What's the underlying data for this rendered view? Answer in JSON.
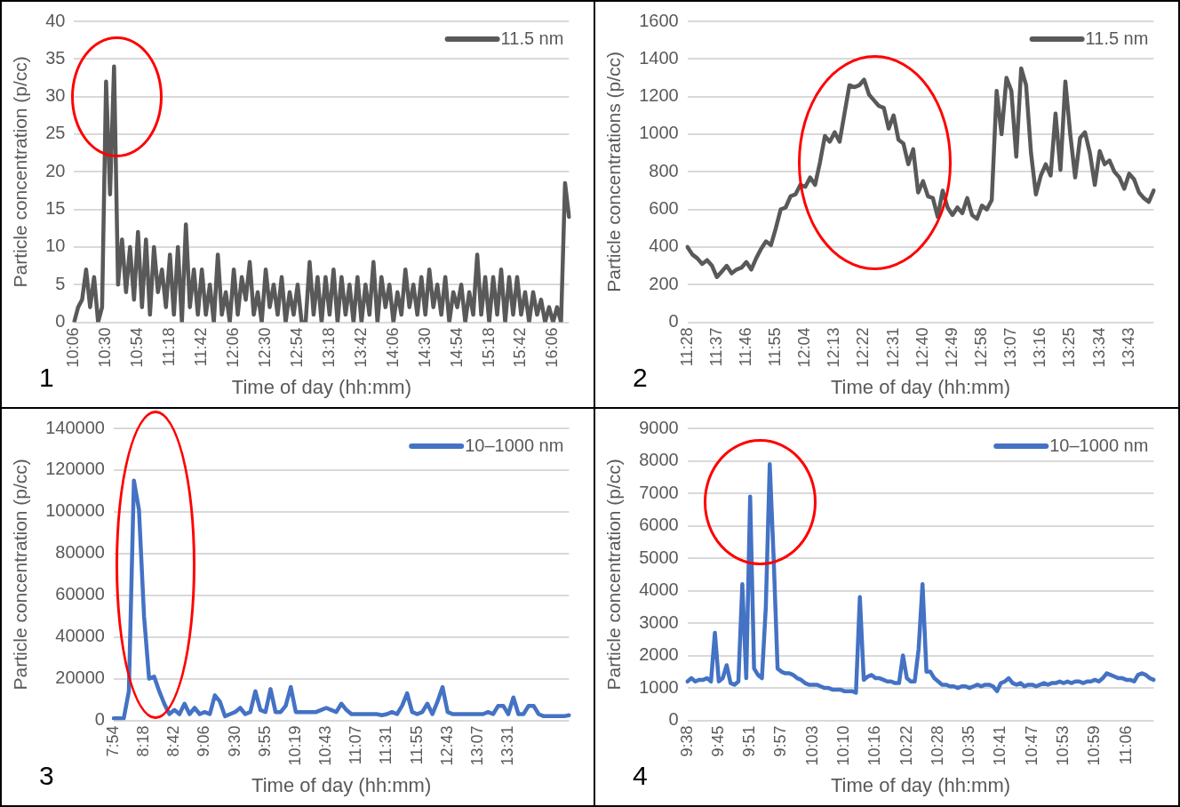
{
  "chart_data": [
    {
      "type": "line",
      "xlabel": "Time of day (hh:mm)",
      "ylabel": "Particle concentration (p/cc)",
      "ylim": [
        0,
        40
      ],
      "yticks": [
        0,
        5,
        10,
        15,
        20,
        25,
        30,
        35,
        40
      ],
      "grid": "y",
      "legend": "top right",
      "annotations": [
        "1"
      ],
      "categories": [
        "10:06",
        null,
        null,
        null,
        null,
        null,
        null,
        null,
        "10:30",
        null,
        null,
        null,
        null,
        null,
        null,
        null,
        "10:54",
        null,
        null,
        null,
        null,
        null,
        null,
        null,
        "11:18",
        null,
        null,
        null,
        null,
        null,
        null,
        null,
        "11:42",
        null,
        null,
        null,
        null,
        null,
        null,
        null,
        "12:06",
        null,
        null,
        null,
        null,
        null,
        null,
        null,
        "12:30",
        null,
        null,
        null,
        null,
        null,
        null,
        null,
        "12:54",
        null,
        null,
        null,
        null,
        null,
        null,
        null,
        "13:18",
        null,
        null,
        null,
        null,
        null,
        null,
        null,
        "13:42",
        null,
        null,
        null,
        null,
        null,
        null,
        null,
        "14:06",
        null,
        null,
        null,
        null,
        null,
        null,
        null,
        "14:30",
        null,
        null,
        null,
        null,
        null,
        null,
        null,
        "14:54",
        null,
        null,
        null,
        null,
        null,
        null,
        null,
        "15:18",
        null,
        null,
        null,
        null,
        null,
        null,
        null,
        "15:42",
        null,
        null,
        null,
        null,
        null,
        null,
        null,
        "16:06",
        null,
        null,
        null,
        null
      ],
      "series": [
        {
          "name": "11.5 nm",
          "color": "#595959",
          "values": [
            0,
            2,
            3,
            7,
            2,
            6,
            0,
            2,
            32,
            17,
            34,
            5,
            11,
            4,
            10,
            3,
            12,
            2,
            11,
            1,
            10,
            4,
            7,
            2,
            9,
            1,
            10,
            0,
            13,
            2,
            7,
            1,
            7,
            1,
            5,
            0,
            9,
            1,
            4,
            0,
            7,
            1,
            6,
            3,
            8,
            1,
            4,
            0,
            7,
            2,
            5,
            1,
            6,
            0,
            4,
            1,
            5,
            0,
            0,
            8,
            1,
            6,
            0,
            6,
            1,
            7,
            0,
            6,
            1,
            5,
            0,
            6,
            0,
            5,
            1,
            8,
            0,
            6,
            2,
            5,
            0,
            4,
            1,
            7,
            2,
            5,
            1,
            6,
            1,
            7,
            2,
            5,
            1,
            6,
            0,
            4,
            2,
            5,
            0,
            4,
            1,
            9,
            1,
            6,
            0,
            6,
            1,
            7,
            0,
            6,
            1,
            6,
            1,
            4,
            0,
            4,
            1,
            3,
            0,
            2,
            0,
            2,
            0,
            18.5,
            14
          ]
        }
      ]
    },
    {
      "type": "line",
      "xlabel": "Time of day (hh:mm)",
      "ylabel": "Particle concentrations (p/cc)",
      "ylim": [
        0,
        1600
      ],
      "yticks": [
        0,
        200,
        400,
        600,
        800,
        1000,
        1200,
        1400,
        1600
      ],
      "grid": "y",
      "legend": "top right",
      "annotations": [
        "2"
      ],
      "categories": [
        "11:28",
        null,
        null,
        null,
        null,
        null,
        "11:37",
        null,
        null,
        null,
        null,
        null,
        "11:46",
        null,
        null,
        null,
        null,
        null,
        "11:55",
        null,
        null,
        null,
        null,
        null,
        "12:04",
        null,
        null,
        null,
        null,
        null,
        "12:13",
        null,
        null,
        null,
        null,
        null,
        "12:22",
        null,
        null,
        null,
        null,
        null,
        "12:31",
        null,
        null,
        null,
        null,
        null,
        "12:40",
        null,
        null,
        null,
        null,
        null,
        "12:49",
        null,
        null,
        null,
        null,
        null,
        "12:58",
        null,
        null,
        null,
        null,
        null,
        "13:07",
        null,
        null,
        null,
        null,
        null,
        "13:16",
        null,
        null,
        null,
        null,
        null,
        "13:25",
        null,
        null,
        null,
        null,
        null,
        "13:34",
        null,
        null,
        null,
        null,
        null,
        "13:43",
        null,
        null,
        null,
        null,
        null
      ],
      "series": [
        {
          "name": "11.5 nm",
          "color": "#595959",
          "values": [
            400,
            360,
            340,
            310,
            330,
            300,
            240,
            270,
            300,
            260,
            280,
            290,
            320,
            280,
            340,
            390,
            430,
            410,
            500,
            600,
            610,
            670,
            680,
            730,
            720,
            770,
            730,
            850,
            990,
            960,
            1010,
            960,
            1110,
            1260,
            1250,
            1260,
            1290,
            1210,
            1180,
            1150,
            1140,
            1030,
            1100,
            970,
            950,
            840,
            920,
            690,
            750,
            670,
            660,
            560,
            700,
            610,
            570,
            610,
            580,
            660,
            570,
            550,
            620,
            600,
            650,
            1230,
            1000,
            1300,
            1230,
            880,
            1350,
            1260,
            900,
            680,
            780,
            840,
            780,
            1110,
            810,
            1280,
            1000,
            770,
            980,
            1010,
            900,
            730,
            910,
            840,
            860,
            800,
            770,
            710,
            790,
            760,
            690,
            660,
            640,
            700
          ]
        }
      ]
    },
    {
      "type": "line",
      "xlabel": "Time of day (hh:mm)",
      "ylabel": "Particle concentration (p/cc)",
      "ylim": [
        0,
        140000
      ],
      "yticks": [
        0,
        20000,
        40000,
        60000,
        80000,
        100000,
        120000,
        140000
      ],
      "grid": "y",
      "legend": "top right",
      "annotations": [
        "3"
      ],
      "categories": [
        "7:54",
        null,
        null,
        null,
        null,
        null,
        "8:18",
        null,
        null,
        null,
        null,
        null,
        "8:42",
        null,
        null,
        null,
        null,
        null,
        "9:06",
        null,
        null,
        null,
        null,
        null,
        "9:30",
        null,
        null,
        null,
        null,
        null,
        "9:55",
        null,
        null,
        null,
        null,
        null,
        "10:19",
        null,
        null,
        null,
        null,
        null,
        "10:43",
        null,
        null,
        null,
        null,
        null,
        "11:07",
        null,
        null,
        null,
        null,
        null,
        "11:31",
        null,
        null,
        null,
        null,
        null,
        "11:55",
        null,
        null,
        null,
        null,
        null,
        "12:43",
        null,
        null,
        null,
        null,
        null,
        "13:07",
        null,
        null,
        null,
        null,
        null,
        "13:31",
        null,
        null,
        null,
        null,
        null,
        null,
        null,
        null,
        null,
        null,
        null,
        null
      ],
      "series": [
        {
          "name": "10–1000 nm",
          "color": "#4472c4",
          "values": [
            1000,
            1000,
            1000,
            14000,
            115000,
            101000,
            50000,
            20000,
            21000,
            14000,
            8000,
            3000,
            5000,
            3000,
            8000,
            3000,
            6000,
            3000,
            4000,
            3000,
            12000,
            9000,
            2000,
            3000,
            4000,
            6000,
            3000,
            4000,
            14000,
            5000,
            4000,
            15000,
            4000,
            4000,
            7000,
            16000,
            4000,
            4000,
            4000,
            4000,
            4000,
            5000,
            6000,
            5000,
            4000,
            8000,
            5000,
            3000,
            3000,
            3000,
            3000,
            3000,
            3000,
            2500,
            3000,
            4000,
            3000,
            7000,
            13000,
            4000,
            3000,
            4000,
            8000,
            3000,
            9000,
            16000,
            4000,
            3000,
            3000,
            3000,
            3000,
            3000,
            3000,
            3000,
            4000,
            3000,
            7000,
            7000,
            3000,
            11000,
            3000,
            3000,
            7000,
            7000,
            3000,
            2000,
            2000,
            2000,
            2000,
            2000,
            2500
          ]
        }
      ]
    },
    {
      "type": "line",
      "xlabel": "Time of day (hh:mm)",
      "ylabel": "Particle concentration (p/cc)",
      "ylim": [
        0,
        9000
      ],
      "yticks": [
        0,
        1000,
        2000,
        3000,
        4000,
        5000,
        6000,
        7000,
        8000,
        9000
      ],
      "grid": "y",
      "legend": "top right",
      "annotations": [
        "4"
      ],
      "categories": [
        "9:38",
        null,
        null,
        null,
        null,
        null,
        null,
        null,
        "9:45",
        null,
        null,
        null,
        null,
        null,
        null,
        null,
        "9:51",
        null,
        null,
        null,
        null,
        null,
        null,
        null,
        "9:57",
        null,
        null,
        null,
        null,
        null,
        null,
        null,
        "10:03",
        null,
        null,
        null,
        null,
        null,
        null,
        null,
        "10:10",
        null,
        null,
        null,
        null,
        null,
        null,
        null,
        "10:16",
        null,
        null,
        null,
        null,
        null,
        null,
        null,
        "10:22",
        null,
        null,
        null,
        null,
        null,
        null,
        null,
        "10:28",
        null,
        null,
        null,
        null,
        null,
        null,
        null,
        "10:35",
        null,
        null,
        null,
        null,
        null,
        null,
        null,
        "10:41",
        null,
        null,
        null,
        null,
        null,
        null,
        null,
        "10:47",
        null,
        null,
        null,
        null,
        null,
        null,
        null,
        "10:53",
        null,
        null,
        null,
        null,
        null,
        null,
        null,
        "10:59",
        null,
        null,
        null,
        null,
        null,
        null,
        null,
        "11:06",
        null,
        null,
        null,
        null,
        null,
        null,
        null
      ],
      "series": [
        {
          "name": "10–1000 nm",
          "color": "#4472c4",
          "values": [
            1200,
            1300,
            1200,
            1250,
            1250,
            1300,
            1200,
            2700,
            1200,
            1300,
            1700,
            1150,
            1100,
            1200,
            4200,
            1300,
            6900,
            1600,
            1400,
            1300,
            3500,
            7900,
            5000,
            1600,
            1500,
            1450,
            1450,
            1400,
            1300,
            1250,
            1150,
            1100,
            1100,
            1100,
            1050,
            1000,
            1000,
            950,
            950,
            950,
            900,
            900,
            900,
            850,
            3800,
            1250,
            1350,
            1400,
            1300,
            1300,
            1250,
            1200,
            1200,
            1150,
            1150,
            2000,
            1300,
            1200,
            1200,
            2200,
            4200,
            1500,
            1500,
            1300,
            1200,
            1100,
            1100,
            1050,
            1050,
            1000,
            1050,
            1050,
            1000,
            1050,
            1100,
            1050,
            1100,
            1100,
            1050,
            900,
            1150,
            1200,
            1300,
            1150,
            1100,
            1150,
            1050,
            1100,
            1100,
            1050,
            1100,
            1150,
            1100,
            1150,
            1150,
            1200,
            1150,
            1200,
            1150,
            1200,
            1200,
            1150,
            1200,
            1200,
            1250,
            1200,
            1300,
            1450,
            1400,
            1350,
            1300,
            1300,
            1250,
            1250,
            1200,
            1400,
            1450,
            1400,
            1300,
            1250
          ]
        }
      ]
    }
  ]
}
